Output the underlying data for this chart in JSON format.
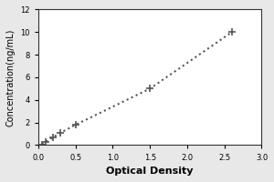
{
  "x_data": [
    0.05,
    0.1,
    0.2,
    0.3,
    0.5,
    1.5,
    2.6
  ],
  "y_data": [
    0.05,
    0.3,
    0.7,
    1.1,
    1.8,
    5.0,
    10.0
  ],
  "xlabel": "Optical Density",
  "ylabel": "Concentration(ng/mL)",
  "xlim": [
    0,
    3
  ],
  "ylim": [
    0,
    12
  ],
  "xticks": [
    0,
    0.5,
    1,
    1.5,
    2,
    2.5,
    3
  ],
  "yticks": [
    0,
    2,
    4,
    6,
    8,
    10,
    12
  ],
  "line_color": "#555555",
  "marker": "+",
  "marker_size": 6,
  "linestyle": "dotted",
  "linewidth": 1.5,
  "xlabel_fontsize": 8,
  "ylabel_fontsize": 7,
  "tick_fontsize": 6,
  "background_color": "#ffffff",
  "figure_bg": "#e8e8e8"
}
